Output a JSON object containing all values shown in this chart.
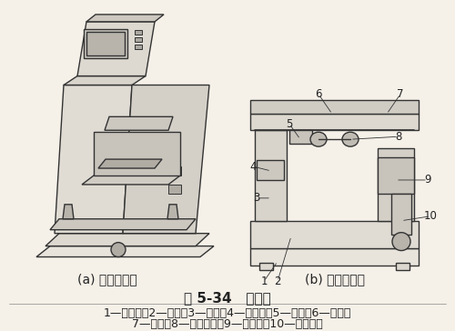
{
  "title": "图 5-34   移印机",
  "caption_a": "(a) 移印机外观",
  "caption_b": "(b) 移印机结构",
  "legend_line1": "1—角铁架；2—底座；3—立柱；4—印版台；5—刮刀；6—横梁；",
  "legend_line2": "7—导轨；8—硅胶印头；9—承印物；10—升降机构",
  "bg_color": "#f5f0e8",
  "line_color": "#333333",
  "text_color": "#222222",
  "title_fontsize": 11,
  "caption_fontsize": 10,
  "legend_fontsize": 9
}
